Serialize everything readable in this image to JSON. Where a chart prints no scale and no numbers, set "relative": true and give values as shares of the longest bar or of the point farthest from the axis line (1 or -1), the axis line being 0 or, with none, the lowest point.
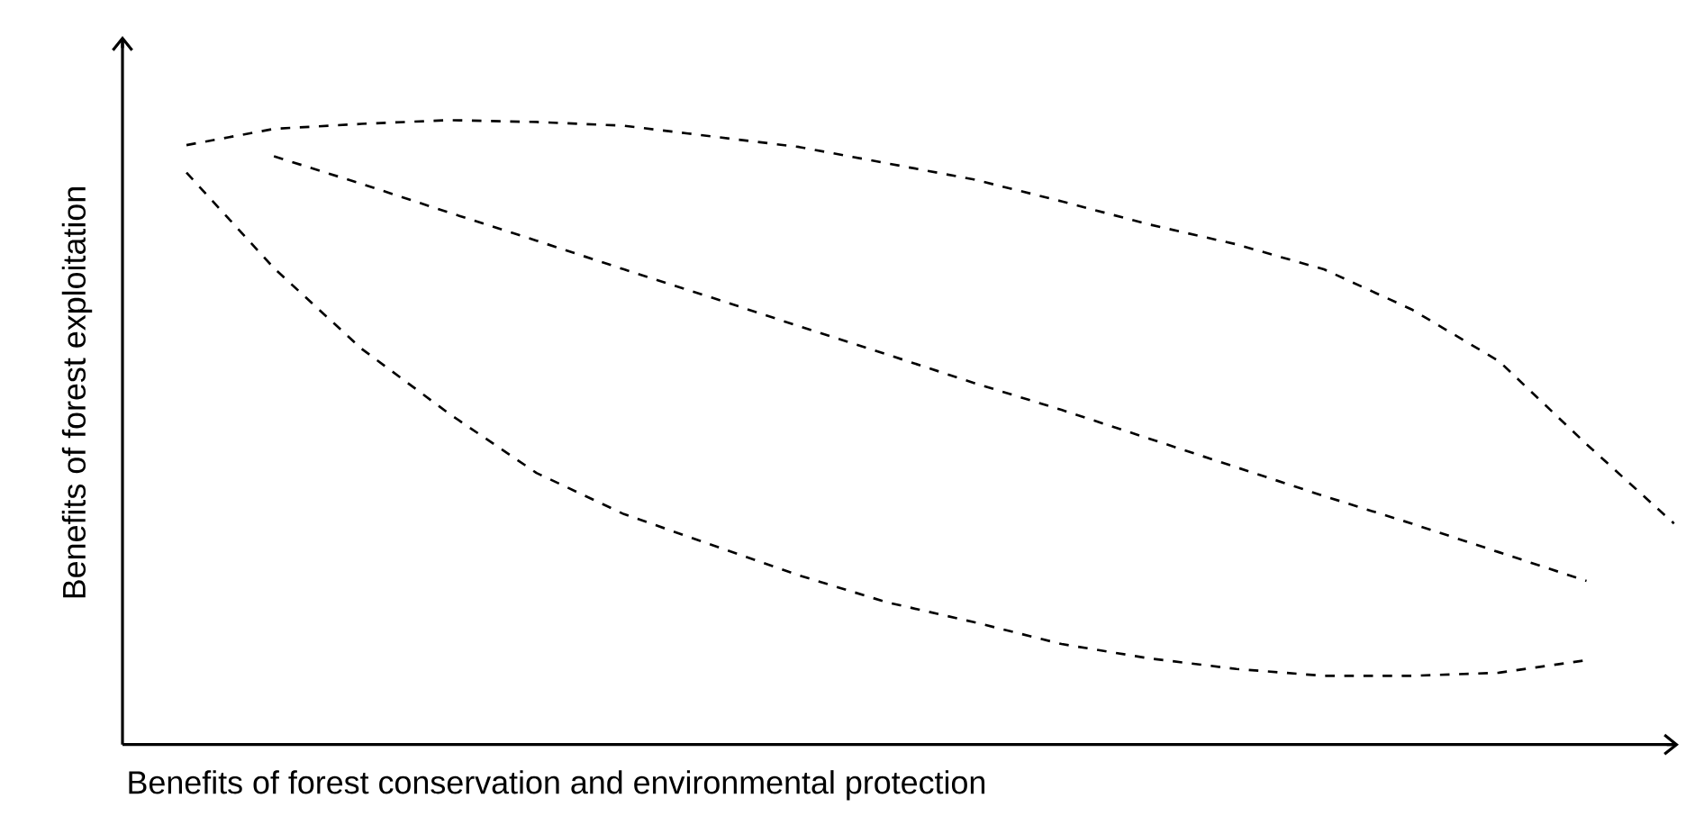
{
  "chart_data": {
    "type": "line",
    "relative": true,
    "line_style": "dashed",
    "xlabel": "Benefits of forest conservation and environmental protection",
    "ylabel": "Benefits of forest exploitation",
    "categories": [
      null,
      null,
      null,
      null,
      null,
      null,
      null,
      null,
      null,
      null,
      null,
      null,
      null,
      null,
      null,
      null,
      null,
      null
    ],
    "series": [
      {
        "color": "#000000",
        "values": [
          0.96,
          0.986,
          0.994,
          1.0,
          0.997,
          0.991,
          0.974,
          0.957,
          0.931,
          0.905,
          0.87,
          0.833,
          0.801,
          0.761,
          0.697,
          0.614,
          0.481,
          0.354
        ]
      },
      {
        "color": "#000000",
        "values": [
          null,
          0.942,
          0.898,
          0.852,
          0.807,
          0.761,
          0.716,
          0.67,
          0.625,
          0.579,
          0.536,
          0.49,
          0.444,
          0.398,
          0.354,
          0.308,
          0.262,
          null
        ]
      },
      {
        "color": "#000000",
        "values": [
          0.916,
          0.763,
          0.634,
          0.53,
          0.435,
          0.369,
          0.32,
          0.271,
          0.228,
          0.196,
          0.161,
          0.138,
          0.121,
          0.11,
          0.11,
          0.115,
          0.135,
          null
        ]
      }
    ]
  }
}
